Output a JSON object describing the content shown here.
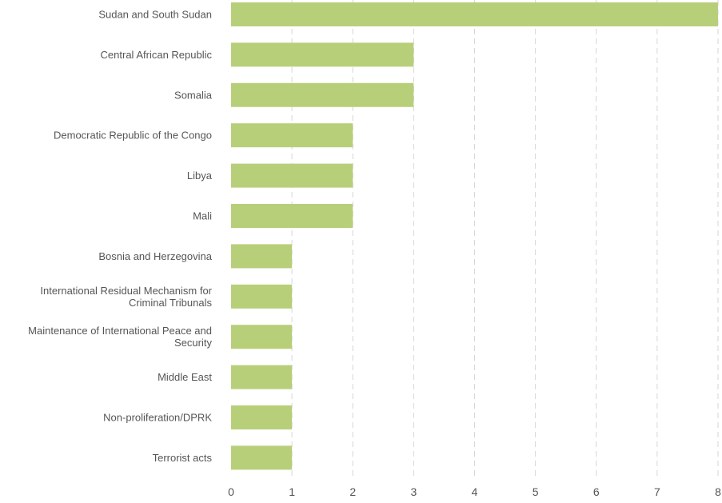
{
  "chart_data": {
    "type": "bar",
    "orientation": "horizontal",
    "title": "",
    "xlabel": "",
    "ylabel": "",
    "xlim": [
      0,
      8
    ],
    "x_ticks": [
      0,
      1,
      2,
      3,
      4,
      5,
      6,
      7,
      8
    ],
    "grid": "vertical-dashed",
    "bar_color": "#b8cf7a",
    "categories": [
      [
        "Sudan and South Sudan"
      ],
      [
        "Central African Republic"
      ],
      [
        "Somalia"
      ],
      [
        "Democratic Republic of the Congo"
      ],
      [
        "Libya"
      ],
      [
        "Mali"
      ],
      [
        "Bosnia and Herzegovina"
      ],
      [
        "International Residual Mechanism for",
        "Criminal Tribunals"
      ],
      [
        "Maintenance of International Peace and",
        "Security"
      ],
      [
        "Middle East"
      ],
      [
        "Non-proliferation/DPRK"
      ],
      [
        "Terrorist acts"
      ]
    ],
    "values": [
      8,
      3,
      3,
      2,
      2,
      2,
      1,
      1,
      1,
      1,
      1,
      1
    ]
  }
}
